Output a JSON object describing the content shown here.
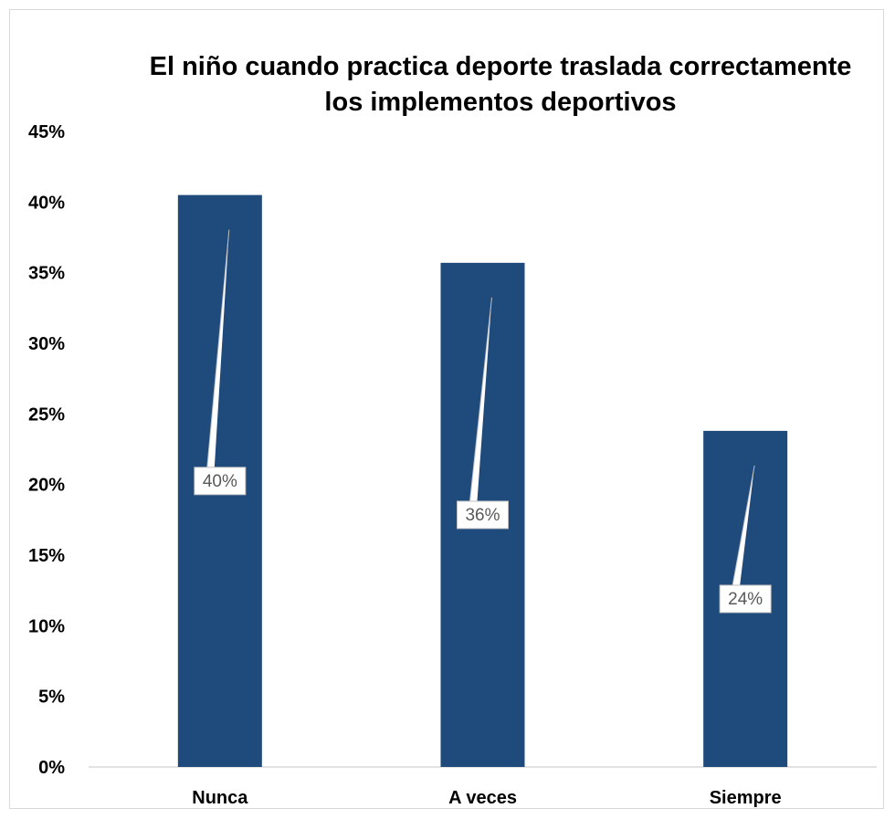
{
  "chart_data": {
    "type": "bar",
    "title": "El niño cuando practica deporte traslada correctamente los implementos deportivos",
    "title_lines": [
      "El niño cuando practica deporte traslada correctamente",
      "los implementos deportivos"
    ],
    "categories": [
      "Nunca",
      "A veces",
      "Siempre"
    ],
    "values": [
      40.5,
      35.7,
      23.8
    ],
    "data_labels": [
      "40%",
      "36%",
      "24%"
    ],
    "y_ticks": [
      "0%",
      "5%",
      "10%",
      "15%",
      "20%",
      "25%",
      "30%",
      "35%",
      "40%",
      "45%"
    ],
    "ylim": [
      0,
      45
    ],
    "xlabel": "",
    "ylabel": "",
    "grid": false,
    "legend": "none",
    "bar_color": "#1f4a7c",
    "label_box_color": "#ffffff",
    "label_text_color": "#595959"
  }
}
